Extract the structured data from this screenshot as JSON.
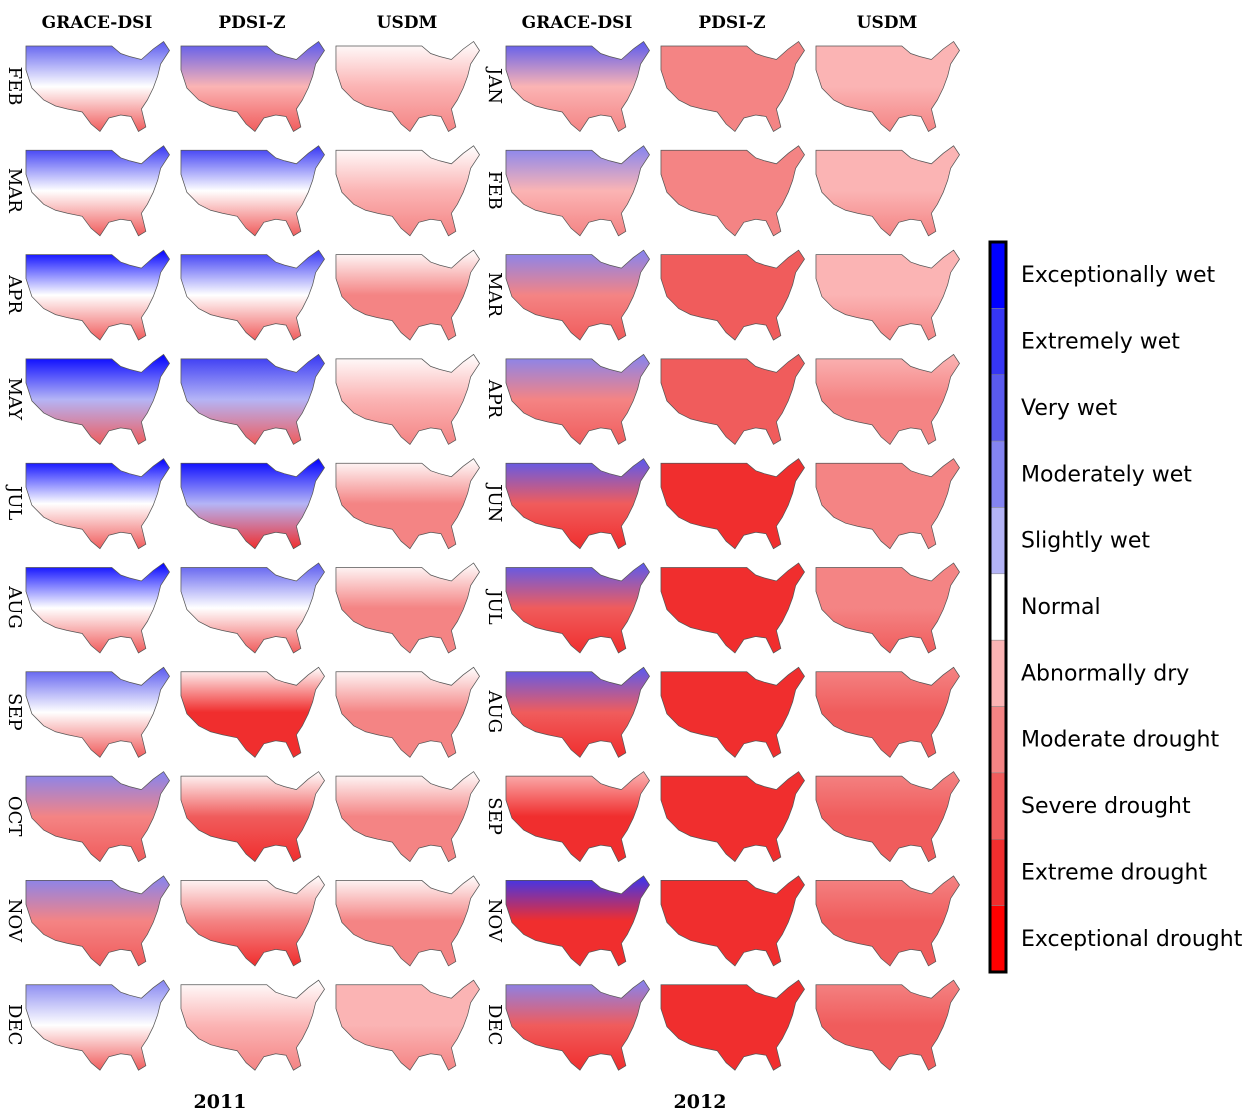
{
  "panels": [
    {
      "year": "2011",
      "columns": [
        "GRACE-DSI",
        "PDSI-Z",
        "USDM"
      ],
      "months": [
        "FEB",
        "MAR",
        "APR",
        "MAY",
        "JUL",
        "AUG",
        "SEP",
        "OCT",
        "NOV",
        "DEC"
      ]
    },
    {
      "year": "2012",
      "columns": [
        "GRACE-DSI",
        "PDSI-Z",
        "USDM"
      ],
      "months": [
        "JAN",
        "FEB",
        "MAR",
        "APR",
        "JUN",
        "JUL",
        "AUG",
        "SEP",
        "NOV",
        "DEC"
      ]
    }
  ],
  "legend": {
    "items": [
      {
        "label": "Exceptionally wet",
        "color": "#0000ff"
      },
      {
        "label": "Extremely wet",
        "color": "#3636f4"
      },
      {
        "label": "Very wet",
        "color": "#5a5aef"
      },
      {
        "label": "Moderately wet",
        "color": "#8484f1"
      },
      {
        "label": "Slightly wet",
        "color": "#b4b4f6"
      },
      {
        "label": "Normal",
        "color": "#ffffff"
      },
      {
        "label": "Abnormally dry",
        "color": "#fbb4b4"
      },
      {
        "label": "Moderate drought",
        "color": "#f48484"
      },
      {
        "label": "Severe drought",
        "color": "#f05c5c"
      },
      {
        "label": "Extreme drought",
        "color": "#f02e2e"
      },
      {
        "label": "Exceptional drought",
        "color": "#ff0000"
      }
    ]
  }
}
